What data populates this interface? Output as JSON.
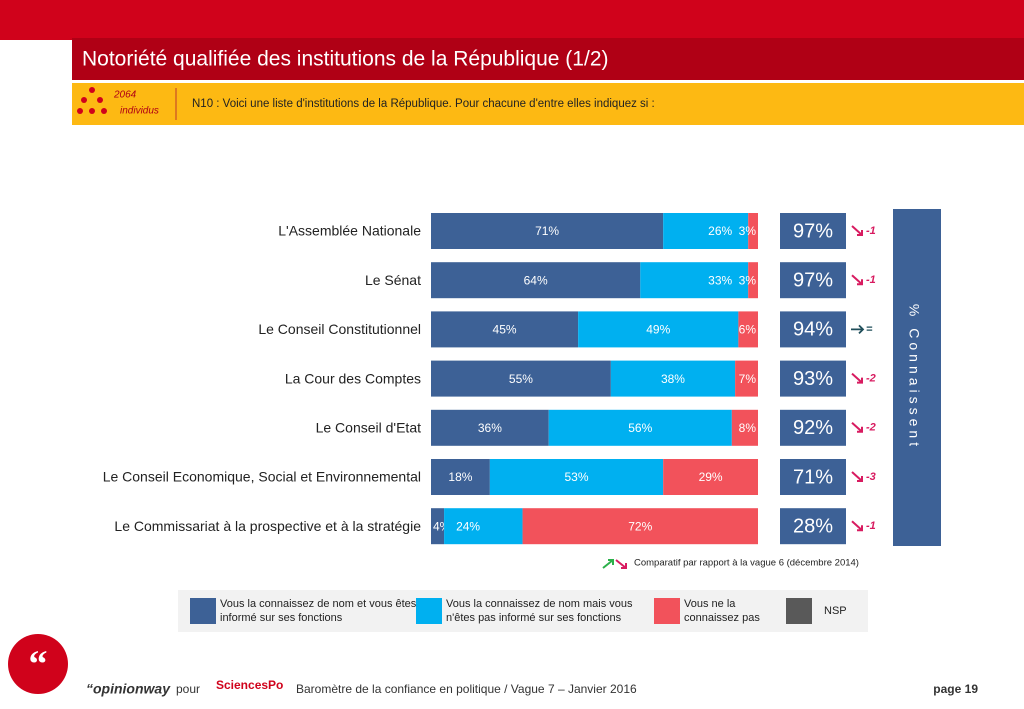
{
  "header": {
    "title": "Notoriété qualifiée des institutions de la République (1/2)",
    "sample_count": "2064",
    "sample_unit": "individus",
    "question": "N10 : Voici une liste d'institutions de la République.  Pour chacune d'entre elles indiquez si :"
  },
  "chart_data": {
    "type": "stacked-bar-horizontal",
    "categories": [
      "L'Assemblée Nationale",
      "Le Sénat",
      "Le Conseil Constitutionnel",
      "La Cour des Comptes",
      "Le Conseil d'Etat",
      "Le Conseil Economique, Social et Environnemental",
      "Le Commissariat à la prospective et à la stratégie"
    ],
    "series": [
      {
        "name": "Vous la connaissez de nom et vous êtes informé sur ses fonctions",
        "color": "#3d6196",
        "values": [
          71,
          64,
          45,
          55,
          36,
          18,
          4
        ],
        "value_labels": [
          "71%",
          "64%",
          "45%",
          "55%",
          "36%",
          "18%",
          "4%"
        ]
      },
      {
        "name": "Vous la connaissez de nom mais vous n'êtes pas informé sur ses fonctions",
        "color": "#00b0f0",
        "values": [
          26,
          33,
          49,
          38,
          56,
          53,
          24
        ],
        "value_labels": [
          "26%",
          "33%",
          "49%",
          "38%",
          "56%",
          "53%",
          "24%"
        ]
      },
      {
        "name": "Vous ne la connaissez pas",
        "color": "#f2525b",
        "values": [
          3,
          3,
          6,
          7,
          8,
          29,
          72
        ],
        "value_labels": [
          "3%",
          "3%",
          "6%",
          "7%",
          "8%",
          "29%",
          "72%"
        ]
      },
      {
        "name": "NSP",
        "color": "#595959",
        "values": [
          0,
          0,
          0,
          0,
          0,
          0,
          0
        ]
      }
    ],
    "xlim": [
      0,
      100
    ],
    "totals": {
      "label": "% Connaissent",
      "values": [
        97,
        97,
        94,
        93,
        92,
        71,
        28
      ],
      "value_labels": [
        "97%",
        "97%",
        "94%",
        "93%",
        "92%",
        "71%",
        "28%"
      ]
    },
    "changes": [
      "-1",
      "-1",
      "=",
      "-2",
      "-2",
      "-3",
      "-1"
    ],
    "note": "Comparatif par rapport à la vague 6  (décembre 2014)"
  },
  "footer": {
    "brand": "“opinionway",
    "for": "pour",
    "partner": "SciencesPo",
    "text": "Baromètre de la confiance en politique / Vague 7 – Janvier 2016",
    "page": "page 19"
  }
}
